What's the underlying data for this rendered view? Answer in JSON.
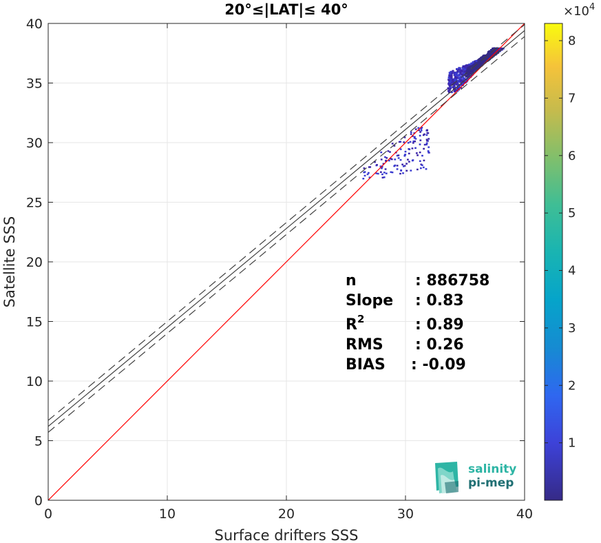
{
  "chart_data": {
    "type": "heatmap",
    "title": "20°≤|LAT|≤ 40°",
    "xlabel": "Surface drifters SSS",
    "ylabel": "Satellite SSS",
    "xlim": [
      0,
      40
    ],
    "ylim": [
      0,
      40
    ],
    "x_ticks": [
      "0",
      "10",
      "20",
      "30",
      "40"
    ],
    "y_ticks": [
      "0",
      "5",
      "10",
      "15",
      "20",
      "25",
      "30",
      "35",
      "40"
    ],
    "grid": true,
    "colorbar": {
      "range": [
        0,
        83000
      ],
      "exponent_label": "×10",
      "exponent_power": "4",
      "ticks": [
        {
          "value": 10000,
          "label": "1"
        },
        {
          "value": 20000,
          "label": "2"
        },
        {
          "value": 30000,
          "label": "3"
        },
        {
          "value": 40000,
          "label": "4"
        },
        {
          "value": 50000,
          "label": "5"
        },
        {
          "value": 60000,
          "label": "6"
        },
        {
          "value": 70000,
          "label": "7"
        },
        {
          "value": 80000,
          "label": "8"
        }
      ]
    },
    "lines": [
      {
        "role": "identity",
        "color": "#ff0000",
        "x": [
          0,
          40
        ],
        "y": [
          0,
          40
        ]
      },
      {
        "role": "regression",
        "color": "#404040",
        "dash": false,
        "x": [
          0,
          40
        ],
        "y": [
          6.2,
          39.4
        ]
      },
      {
        "role": "regression-upper",
        "color": "#404040",
        "dash": true,
        "x": [
          0,
          40
        ],
        "y": [
          6.7,
          39.9
        ]
      },
      {
        "role": "regression-lower",
        "color": "#404040",
        "dash": true,
        "x": [
          0,
          40
        ],
        "y": [
          5.7,
          38.9
        ]
      }
    ],
    "density_clusters": [
      {
        "x_range": [
          33.5,
          38.2
        ],
        "y_range": [
          34.3,
          38.0
        ],
        "intensity": "high"
      },
      {
        "x_range": [
          26.0,
          32.0
        ],
        "y_range": [
          27.0,
          31.5
        ],
        "intensity": "low"
      }
    ],
    "stats": [
      {
        "name": "n",
        "value": ": 886758"
      },
      {
        "name": "Slope",
        "value": ": 0.83"
      },
      {
        "name": "R",
        "superscript": "2",
        "value": ": 0.89"
      },
      {
        "name": "RMS",
        "value": ": 0.26"
      },
      {
        "name": "BIAS",
        "value": ": -0.09"
      }
    ]
  },
  "logo": {
    "line1": "salinity",
    "line2": "pi-mep",
    "color1": "#2eb5a5",
    "color2": "#1f6f73"
  },
  "colors": {
    "density_low": "#3d26a8",
    "density_mid": "#3a3bd0",
    "density_high": "#352a87"
  }
}
